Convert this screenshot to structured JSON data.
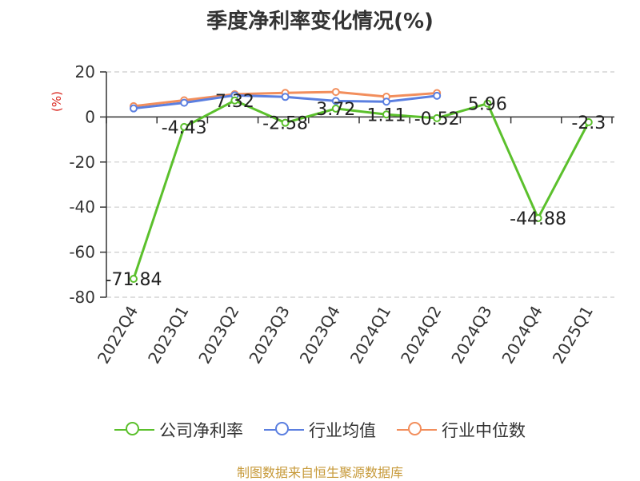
{
  "title": "季度净利率变化情况(%)",
  "source": "制图数据来自恒生聚源数据库",
  "chart_data": {
    "type": "line",
    "ylabel": "(%)",
    "ylim": [
      -80,
      20
    ],
    "yticks": [
      20,
      0,
      -20,
      -40,
      -60,
      -80
    ],
    "grid": true,
    "legend_position": "bottom",
    "categories": [
      "2022Q4",
      "2023Q1",
      "2023Q2",
      "2023Q3",
      "2023Q4",
      "2024Q1",
      "2024Q2",
      "2024Q3",
      "2024Q4",
      "2025Q1"
    ],
    "series": [
      {
        "name": "公司净利率",
        "color": "#5bc02c",
        "values": [
          -71.84,
          -4.43,
          7.32,
          -2.58,
          3.72,
          1.11,
          -0.52,
          5.96,
          -44.88,
          -2.3
        ],
        "labels": [
          "-71.84",
          "-4.43",
          "7.32",
          "-2.58",
          "3.72",
          "1.11",
          "-0.52",
          "5.96",
          "-44.88",
          "-2.3"
        ]
      },
      {
        "name": "行业均值",
        "color": "#5b7fe0",
        "values": [
          3.8,
          6.3,
          9.6,
          8.9,
          7.1,
          6.8,
          9.4,
          null,
          null,
          null
        ]
      },
      {
        "name": "行业中位数",
        "color": "#f28e5c",
        "values": [
          4.8,
          7.4,
          10.1,
          10.7,
          11.1,
          9.0,
          10.6,
          null,
          null,
          null
        ]
      }
    ]
  }
}
